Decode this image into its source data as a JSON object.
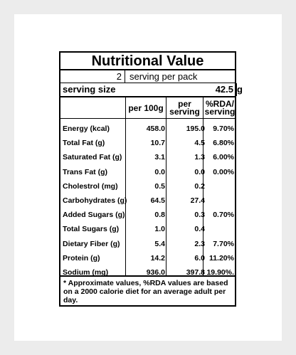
{
  "title": "Nutritional Value",
  "pack": {
    "count": "2",
    "label": "serving per pack"
  },
  "serving": {
    "label": "serving size",
    "value": "42.5",
    "unit": "g"
  },
  "columns": {
    "per100": "per 100g",
    "per_serving": "per serving",
    "rda": "%RDA/ serving"
  },
  "nutrients": [
    {
      "name": "Energy (kcal)",
      "per100": "458.0",
      "serving": "195.0",
      "rda": "9.70%"
    },
    {
      "name": "Total Fat (g)",
      "per100": "10.7",
      "serving": "4.5",
      "rda": "6.80%"
    },
    {
      "name": "Saturated Fat (g)",
      "per100": "3.1",
      "serving": "1.3",
      "rda": "6.00%"
    },
    {
      "name": "Trans Fat (g)",
      "per100": "0.0",
      "serving": "0.0",
      "rda": "0.00%"
    },
    {
      "name": "Cholestrol (mg)",
      "per100": "0.5",
      "serving": "0.2",
      "rda": ""
    },
    {
      "name": "Carbohydrates (g)",
      "per100": "64.5",
      "serving": "27.4",
      "rda": ""
    },
    {
      "name": "Added Sugars (g)",
      "per100": "0.8",
      "serving": "0.3",
      "rda": "0.70%"
    },
    {
      "name": "Total Sugars (g)",
      "per100": "1.0",
      "serving": "0.4",
      "rda": ""
    },
    {
      "name": "Dietary Fiber (g)",
      "per100": "5.4",
      "serving": "2.3",
      "rda": "7.70%"
    },
    {
      "name": "Protein (g)",
      "per100": "14.2",
      "serving": "6.0",
      "rda": "11.20%"
    },
    {
      "name": "Sodium (mg)",
      "per100": "936.0",
      "serving": "397.8",
      "rda": "19.90%."
    }
  ],
  "footnote": "* Approximate values, %RDA values are based on a 2000 calorie diet for an average adult per day."
}
